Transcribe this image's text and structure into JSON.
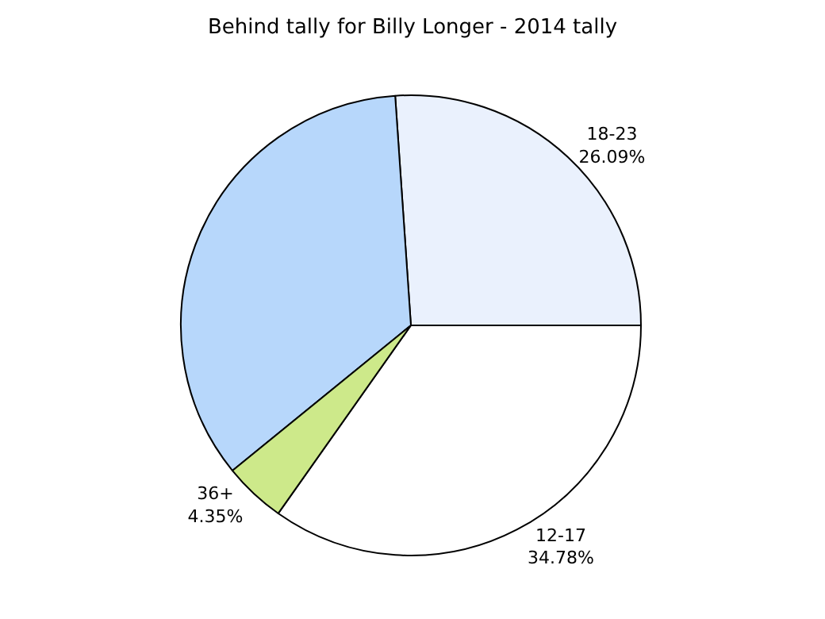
{
  "chart_data": {
    "type": "pie",
    "title": "Behind tally for Billy Longer - 2014 tally",
    "categories": [
      "12-17",
      "18-23",
      null,
      "36+"
    ],
    "values": [
      34.78,
      26.09,
      34.78,
      4.35
    ],
    "value_labels": [
      "34.78%",
      "26.09%",
      null,
      "4.35%"
    ],
    "colors": [
      "#ffffff",
      "#eaf1fd",
      "#b7d7fb",
      "#cde98a"
    ],
    "legend": false
  }
}
